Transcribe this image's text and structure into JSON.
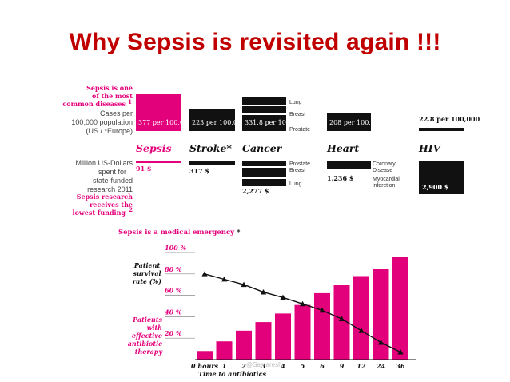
{
  "slide": {
    "title": "Why Sepsis is revisited again !!!"
  },
  "colors": {
    "title_red": "#c00000",
    "magenta": "#e3007b",
    "black": "#111111",
    "gray": "#666666"
  },
  "infographic": {
    "left_labels": {
      "sepsis_is_one": [
        "Sepsis is one",
        "of the most",
        "common diseases"
      ],
      "footnote_1": "1",
      "cases_per": [
        "Cases per",
        "100,000 population",
        "(US / *Europe)"
      ],
      "million_usd": [
        "Million US-Dollars",
        "spent for",
        "state-funded",
        "research 2011"
      ],
      "sepsis_research": [
        "Sepsis research",
        "receives the",
        "lowest funding"
      ],
      "footnote_2": "2"
    },
    "diseases": [
      {
        "name": "Sepsis",
        "cases": "377 per 100,000",
        "cases_value": 377,
        "funding": "91 $",
        "funding_value": 91
      },
      {
        "name": "Stroke*",
        "cases": "223 per 100,000",
        "cases_value": 223,
        "funding": "317 $",
        "funding_value": 317
      },
      {
        "name": "Cancer",
        "cases": "331.8 per 100,000",
        "cases_value": 331.8,
        "funding": "2,277 $",
        "funding_value": 2277,
        "case_parts": [
          "Lung",
          "Breast",
          "Prostate"
        ],
        "funding_parts": [
          "Prostate",
          "Breast",
          "Lung"
        ]
      },
      {
        "name": "Heart",
        "cases": "208 per 100,000",
        "cases_value": 208,
        "funding": "1,236 $",
        "funding_value": 1236,
        "funding_parts": [
          "Coronary",
          "Disease",
          "Myocardial",
          "infarction"
        ]
      },
      {
        "name": "HIV",
        "cases": "22.8 per 100,000",
        "cases_value": 22.8,
        "funding": "2,900 $",
        "funding_value": 2900
      }
    ]
  },
  "chart_data": {
    "type": "bar",
    "title": "Sepsis is a medical emergency",
    "title_footnote": "*",
    "ylabel": [
      "Patient",
      "survival",
      "rate (%)"
    ],
    "series_label": [
      "Patients",
      "with",
      "effective",
      "antibiotic",
      "therapy"
    ],
    "xlabel": "Time to antibiotics",
    "categories": [
      "0 hours",
      "1",
      "2",
      "3",
      "4",
      "5",
      "6",
      "9",
      "12",
      "24",
      "36"
    ],
    "y_ticks": [
      "100 %",
      "80 %",
      "60 %",
      "40 %",
      "20 %"
    ],
    "y_tick_values": [
      100,
      80,
      60,
      40,
      20
    ],
    "ylim": [
      0,
      100
    ],
    "bars": [
      8,
      17,
      27,
      35,
      43,
      51,
      62,
      70,
      78,
      85,
      96
    ],
    "survival_line": [
      80,
      75,
      70,
      63,
      58,
      52,
      46,
      38,
      27,
      16,
      7
    ],
    "watermark": "@Samaresh"
  }
}
